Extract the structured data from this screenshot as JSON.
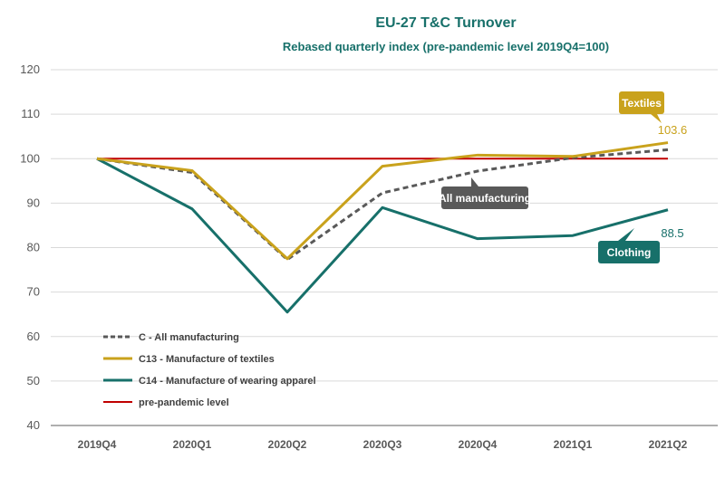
{
  "chart_data": {
    "type": "line",
    "title": "EU-27 T&C Turnover",
    "subtitle": "Rebased quarterly index (pre-pandemic level 2019Q4=100)",
    "categories": [
      "2019Q4",
      "2020Q1",
      "2020Q2",
      "2020Q3",
      "2020Q4",
      "2021Q1",
      "2021Q2"
    ],
    "ylim": [
      40,
      120
    ],
    "yticks": [
      40,
      50,
      60,
      70,
      80,
      90,
      100,
      110,
      120
    ],
    "grid": true,
    "legend_position": "bottom-left",
    "series": [
      {
        "name": "C - All manufacturing",
        "values": [
          100,
          96.9,
          77.3,
          92.3,
          97.2,
          100.2,
          102.0
        ],
        "color": "#595959",
        "style": "dashed"
      },
      {
        "name": "C13 - Manufacture of textiles",
        "values": [
          100,
          97.3,
          77.5,
          98.3,
          100.8,
          100.5,
          103.6
        ],
        "color": "#c9a21c",
        "style": "solid"
      },
      {
        "name": "C14 - Manufacture of wearing apparel",
        "values": [
          100,
          88.7,
          65.5,
          89.0,
          82.0,
          82.7,
          88.5
        ],
        "color": "#17706a",
        "style": "solid"
      },
      {
        "name": "pre-pandemic level",
        "values": [
          100,
          100,
          100,
          100,
          100,
          100,
          100
        ],
        "color": "#c00000",
        "style": "solid"
      }
    ],
    "annotations": [
      {
        "text": "Textiles",
        "color": "#c9a21c"
      },
      {
        "text": "All manufacturing",
        "color": "#595959"
      },
      {
        "text": "Clothing",
        "color": "#17706a"
      }
    ],
    "data_labels": [
      {
        "text": "103.6",
        "color": "#c9a21c"
      },
      {
        "text": "88.5",
        "color": "#17706a"
      }
    ]
  }
}
